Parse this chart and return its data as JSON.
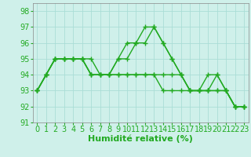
{
  "xlabel": "Humidité relative (%)",
  "background_color": "#cff0ea",
  "grid_color": "#aaddd6",
  "line_color": "#22aa22",
  "xlim": [
    -0.5,
    23.5
  ],
  "ylim": [
    91,
    98.5
  ],
  "xticks": [
    0,
    1,
    2,
    3,
    4,
    5,
    6,
    7,
    8,
    9,
    10,
    11,
    12,
    13,
    14,
    15,
    16,
    17,
    18,
    19,
    20,
    21,
    22,
    23
  ],
  "yticks": [
    91,
    92,
    93,
    94,
    95,
    96,
    97,
    98
  ],
  "lines": [
    {
      "x": [
        0,
        1,
        2,
        3,
        4,
        5,
        6,
        7,
        8,
        9,
        10,
        11,
        12,
        13,
        14,
        15,
        16,
        17,
        18,
        19,
        20,
        21,
        22,
        23
      ],
      "y": [
        93,
        94,
        95,
        95,
        95,
        95,
        95,
        94,
        94,
        95,
        96,
        96,
        96,
        97,
        96,
        95,
        94,
        93,
        93,
        94,
        94,
        93,
        92,
        92
      ]
    },
    {
      "x": [
        0,
        1,
        2,
        3,
        4,
        5,
        6,
        7,
        8,
        9,
        10,
        11,
        12,
        13,
        14,
        15,
        16,
        17,
        18,
        19,
        20,
        21,
        22,
        23
      ],
      "y": [
        93,
        94,
        95,
        95,
        95,
        95,
        94,
        94,
        94,
        94,
        94,
        94,
        94,
        94,
        94,
        94,
        94,
        93,
        93,
        93,
        93,
        93,
        92,
        92
      ]
    },
    {
      "x": [
        0,
        1,
        2,
        3,
        4,
        5,
        6,
        7,
        8,
        9,
        10,
        11,
        12,
        13,
        14,
        15,
        16,
        17,
        18,
        19,
        20,
        21,
        22,
        23
      ],
      "y": [
        93,
        94,
        95,
        95,
        95,
        95,
        94,
        94,
        94,
        95,
        95,
        96,
        97,
        97,
        96,
        95,
        94,
        93,
        93,
        93,
        94,
        93,
        92,
        92
      ]
    },
    {
      "x": [
        0,
        1,
        2,
        3,
        4,
        5,
        6,
        7,
        8,
        9,
        10,
        11,
        12,
        13,
        14,
        15,
        16,
        17,
        18,
        19,
        20,
        21,
        22,
        23
      ],
      "y": [
        93,
        94,
        95,
        95,
        95,
        95,
        94,
        94,
        94,
        94,
        94,
        94,
        94,
        94,
        93,
        93,
        93,
        93,
        93,
        93,
        93,
        93,
        92,
        92
      ]
    }
  ],
  "marker": "+",
  "marker_size": 4,
  "linewidth": 1.0,
  "xlabel_fontsize": 8,
  "tick_fontsize": 7
}
